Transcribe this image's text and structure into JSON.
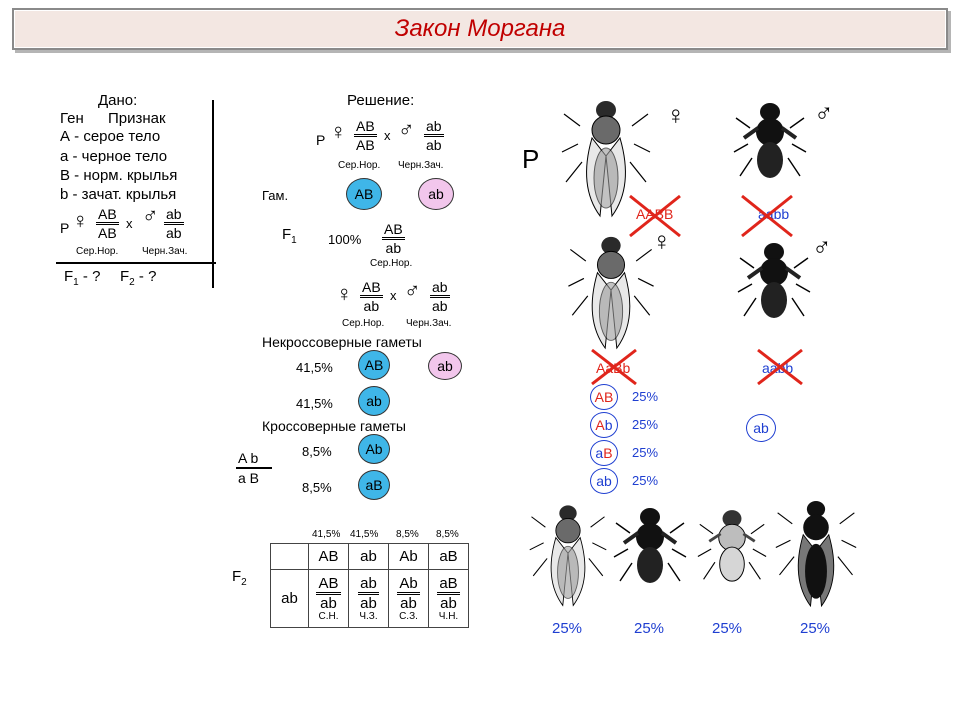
{
  "title": "Закон Моргана",
  "given": {
    "heading": "Дано:",
    "col_gene": "Ген",
    "col_trait": "Признак",
    "rows": [
      "А - серое тело",
      "а - черное тело",
      "В - норм. крылья",
      "b - зачат. крылья"
    ],
    "p_label": "P",
    "female_num": "AB",
    "female_den": "AB",
    "cross": "x",
    "male_num": "ab",
    "male_den": "ab",
    "female_pheno": "Сер.Нор.",
    "male_pheno": "Черн.Зач.",
    "f1_q": "F",
    "f1_sub": "1",
    "f1_tail": "- ?",
    "f2_q": "F",
    "f2_sub": "2",
    "f2_tail": "- ?"
  },
  "solution": {
    "heading": "Решение:",
    "p_label": "P",
    "female_num": "AB",
    "female_den": "AB",
    "cross": "x",
    "male_num": "ab",
    "male_den": "ab",
    "female_pheno": "Сер.Нор.",
    "male_pheno": "Черн.Зач.",
    "gam_label": "Гам.",
    "gamete_female": "AB",
    "gamete_male": "ab",
    "f1_label": "F",
    "f1_sub": "1",
    "f1_percent": "100%",
    "f1_num": "AB",
    "f1_den": "ab",
    "f1_pheno": "Сер.Нор.",
    "cross2_female_num": "AB",
    "cross2_female_den": "ab",
    "cross2_x": "x",
    "cross2_male_num": "ab",
    "cross2_male_den": "ab",
    "cross2_female_pheno": "Сер.Нор.",
    "cross2_male_pheno": "Черн.Зач.",
    "noncross_heading": "Некроссоверные гаметы",
    "noncross": [
      {
        "percent": "41,5%",
        "gamete": "AB"
      },
      {
        "percent": "41,5%",
        "gamete": "ab"
      }
    ],
    "noncross_male_gamete": "ab",
    "cross_heading": "Кроссоверные гаметы",
    "crossover": [
      {
        "percent": "8,5%",
        "gamete": "Ab"
      },
      {
        "percent": "8,5%",
        "gamete": "aB"
      }
    ],
    "chrom_top": "A  b",
    "chrom_bottom": "a  B"
  },
  "punnett": {
    "f2_label": "F",
    "f2_sub": "2",
    "percents": [
      "41,5%",
      "41,5%",
      "8,5%",
      "8,5%"
    ],
    "header": [
      "AB",
      "ab",
      "Ab",
      "aB"
    ],
    "row_label": "ab",
    "cells": [
      {
        "num": "AB",
        "den": "ab",
        "pheno": "С.Н."
      },
      {
        "num": "ab",
        "den": "ab",
        "pheno": "Ч.З."
      },
      {
        "num": "Ab",
        "den": "ab",
        "pheno": "С.З."
      },
      {
        "num": "aB",
        "den": "ab",
        "pheno": "Ч.Н."
      }
    ]
  },
  "right_panel": {
    "p_label": "P",
    "parent1_genotype": "AABB",
    "parent2_genotype": "aabb",
    "f1_genotype": "AaBb",
    "tester_genotype": "aabb",
    "gametes": [
      {
        "g1": "A",
        "g2": "B",
        "percent": "25%"
      },
      {
        "g1": "A",
        "g2": "b",
        "percent": "25%"
      },
      {
        "g1": "a",
        "g2": "B",
        "percent": "25%"
      },
      {
        "g1": "a",
        "g2": "b",
        "percent": "25%"
      }
    ],
    "tester_gamete": "ab",
    "offspring_percents": [
      "25%",
      "25%",
      "25%",
      "25%"
    ],
    "female_symbol": "♀",
    "male_symbol": "♂"
  },
  "colors": {
    "title_red": "#c00000",
    "gamete_blue": "#3fb6e8",
    "gamete_pink": "#f2c6ec",
    "mark_red": "#e0251b",
    "ring_blue": "#1f3fd1"
  }
}
